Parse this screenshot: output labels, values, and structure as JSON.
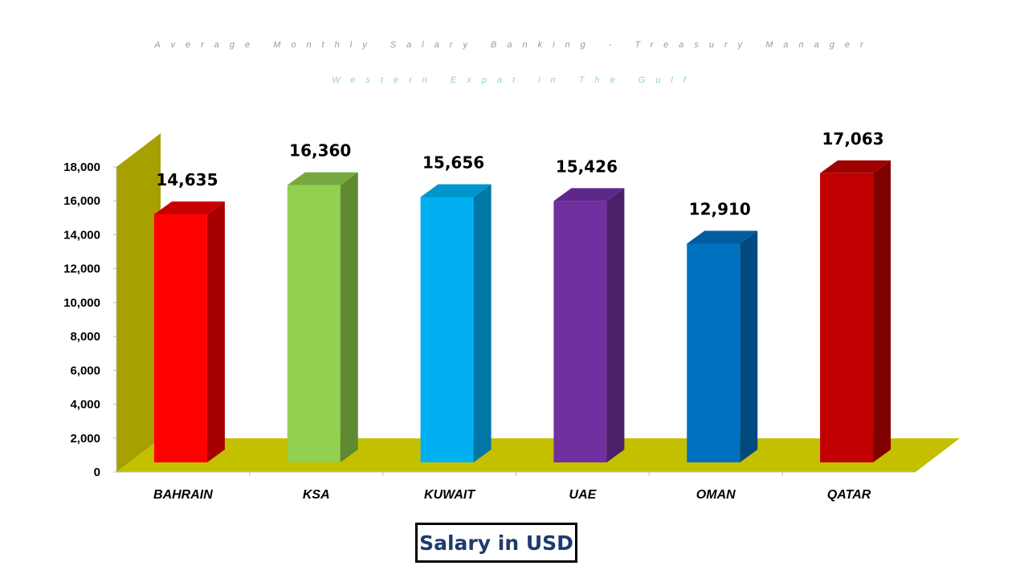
{
  "chart_data": {
    "type": "bar",
    "title": "Average Monthly Salary Banking - Treasury Manager",
    "subtitle": "Western Expat in The Gulf",
    "categories": [
      "BAHRAIN",
      "KSA",
      "KUWAIT",
      "UAE",
      "OMAN",
      "QATAR"
    ],
    "values": [
      14635,
      16360,
      15656,
      15426,
      12910,
      17063
    ],
    "value_labels": [
      "14,635",
      "16,360",
      "15,656",
      "15,426",
      "12,910",
      "17,063"
    ],
    "y_ticks": [
      0,
      2000,
      4000,
      6000,
      8000,
      10000,
      12000,
      14000,
      16000,
      18000
    ],
    "y_tick_labels": [
      "0",
      "2,000",
      "4,000",
      "6,000",
      "8,000",
      "10,000",
      "12,000",
      "14,000",
      "16,000",
      "18,000"
    ],
    "ylim": [
      0,
      18000
    ],
    "xlabel": "",
    "ylabel": "",
    "unit_label": "Salary in USD",
    "grid": false,
    "style": "3d-column",
    "colors": {
      "bars": [
        "#ff0000",
        "#92d050",
        "#00b0f0",
        "#7030a0",
        "#0070c0",
        "#c00000"
      ],
      "bar_sides": [
        "#a80000",
        "#5f8a32",
        "#0077a6",
        "#4b206b",
        "#004a80",
        "#800000"
      ],
      "bar_tops": [
        "#c80000",
        "#76a83f",
        "#0096cc",
        "#5e288a",
        "#005c9e",
        "#a00000"
      ],
      "wall": "#a6a000",
      "floor": "#c4c000"
    }
  }
}
